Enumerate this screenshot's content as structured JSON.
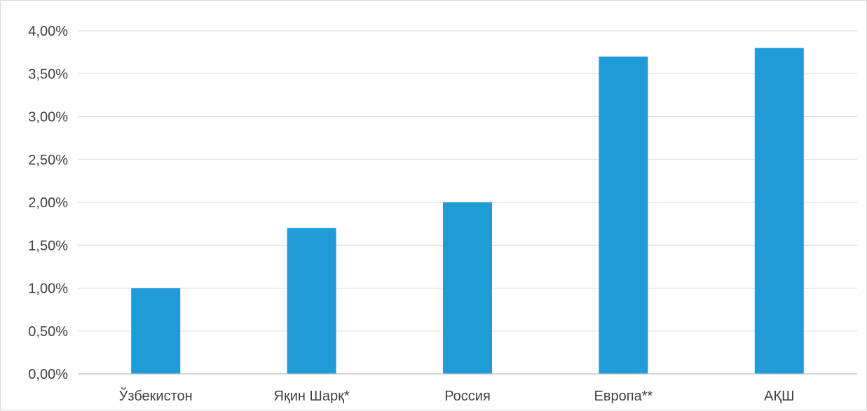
{
  "chart_data": {
    "type": "bar",
    "categories": [
      "Ўзбекистон",
      "Яқин Шарқ*",
      "Россия",
      "Европа**",
      "АҚШ"
    ],
    "values": [
      1.0,
      1.7,
      2.0,
      3.7,
      3.8
    ],
    "ylim": [
      0,
      4
    ],
    "ytick_values": [
      0,
      0.5,
      1.0,
      1.5,
      2.0,
      2.5,
      3.0,
      3.5,
      4.0
    ],
    "ytick_labels": [
      "0,00%",
      "0,50%",
      "1,00%",
      "1,50%",
      "2,00%",
      "2,50%",
      "3,00%",
      "3,50%",
      "4,00%"
    ],
    "title": "",
    "xlabel": "",
    "ylabel": "",
    "grid": true,
    "legend": "none",
    "colors": {
      "bar": "#1f9bd7",
      "grid": "#d9d9d9",
      "axis": "#bfbfbf",
      "text": "#404040"
    }
  }
}
